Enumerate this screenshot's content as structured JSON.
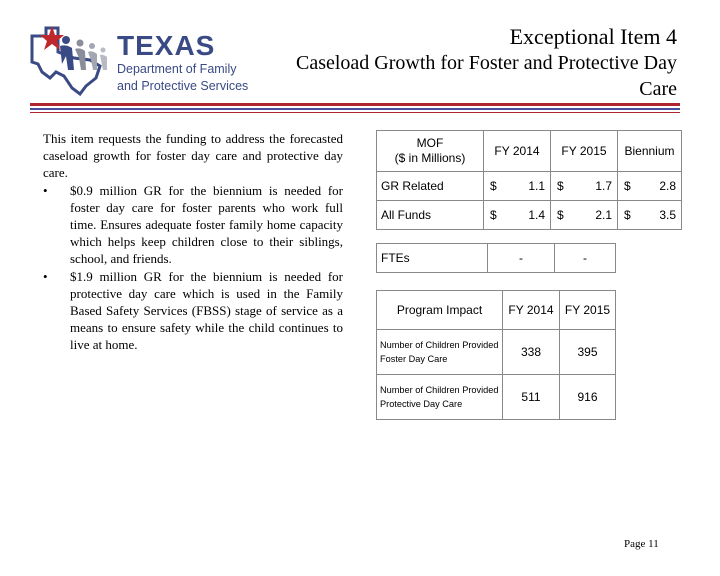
{
  "logo": {
    "name": "TEXAS",
    "subtitle_line1": "Department of Family",
    "subtitle_line2": "and Protective Services",
    "colors": {
      "blue": "#3a4a85",
      "red": "#c0272d",
      "gray": "#8a8d9a"
    }
  },
  "header": {
    "title": "Exceptional Item 4",
    "subtitle_line1": "Caseload Growth for Foster and Protective Day",
    "subtitle_line2": "Care"
  },
  "body": {
    "intro": "This item requests the funding to address the forecasted caseload growth for foster day care and protective day care.",
    "bullets": [
      "$0.9 million GR for the biennium is needed for foster day care for foster parents who work full time. Ensures adequate foster family home capacity which helps keep children close to their siblings, school, and friends.",
      "$1.9 million GR for the biennium is needed for protective day care which is used in the Family Based Safety Services (FBSS) stage of service as a means to ensure safety while the child continues to live at home."
    ],
    "bullet_symbol": "•"
  },
  "funding_table": {
    "headers": [
      "MOF\n($ in Millions)",
      "FY 2014",
      "FY 2015",
      "Biennium"
    ],
    "rows": [
      {
        "label": "GR Related",
        "cells": [
          [
            "$",
            "1.1"
          ],
          [
            "$",
            "1.7"
          ],
          [
            "$",
            "2.8"
          ]
        ]
      },
      {
        "label": "All Funds",
        "cells": [
          [
            "$",
            "1.4"
          ],
          [
            "$",
            "2.1"
          ],
          [
            "$",
            "3.5"
          ]
        ]
      }
    ]
  },
  "fte_table": {
    "label": "FTEs",
    "values": [
      "-",
      "-"
    ]
  },
  "impact_table": {
    "headers": [
      "Program Impact",
      "FY 2014",
      "FY 2015"
    ],
    "rows": [
      {
        "label": "Number of Children Provided Foster Day Care",
        "values": [
          "338",
          "395"
        ]
      },
      {
        "label": "Number of Children Provided Protective Day Care",
        "values": [
          "511",
          "916"
        ]
      }
    ]
  },
  "footer": {
    "page": "Page 11"
  },
  "colors": {
    "rule_red": "#b1252f",
    "rule_blue": "#4a4f9c"
  }
}
